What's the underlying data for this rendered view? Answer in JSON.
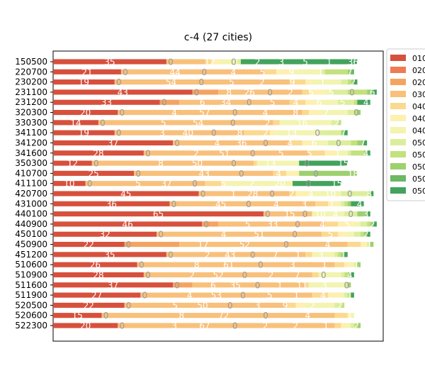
{
  "chart_data": {
    "type": "bar",
    "orientation": "horizontal",
    "stacked": true,
    "title": "c-4 (27 cities)",
    "xlabel": "",
    "ylabel": "",
    "xlim": [
      0,
      102
    ],
    "grid": false,
    "legend_position": "right",
    "categories": [
      "150500",
      "220700",
      "230200",
      "231100",
      "231200",
      "320300",
      "330300",
      "341100",
      "341200",
      "341600",
      "350300",
      "410700",
      "411100",
      "420700",
      "431000",
      "440100",
      "440900",
      "450100",
      "450900",
      "451200",
      "510600",
      "510900",
      "511600",
      "511900",
      "520500",
      "520600",
      "522300"
    ],
    "series": [
      {
        "name": "010",
        "color": "#d7503c",
        "values": [
          35,
          21,
          19,
          43,
          33,
          20,
          14,
          19,
          37,
          28,
          12,
          25,
          10,
          45,
          36,
          65,
          46,
          32,
          22,
          35,
          26,
          28,
          37,
          27,
          22,
          15,
          20
        ]
      },
      {
        "name": "020",
        "color": "#ef7b52",
        "values": [
          0,
          0,
          0,
          0,
          0,
          0,
          0,
          0,
          0,
          0,
          0,
          0,
          0,
          0,
          0,
          0,
          0,
          0,
          0,
          0,
          0,
          0,
          0,
          0,
          0,
          0,
          0
        ]
      },
      {
        "name": "020",
        "color": "#f5a361",
        "values": [
          0,
          0,
          0,
          8,
          6,
          0,
          0,
          0,
          0,
          0,
          0,
          0,
          0,
          0,
          0,
          0,
          5,
          0,
          17,
          0,
          0,
          0,
          6,
          0,
          0,
          0,
          0
        ]
      },
      {
        "name": "030",
        "color": "#f8c07a",
        "values": [
          12,
          44,
          54,
          26,
          34,
          57,
          54,
          40,
          36,
          51,
          50,
          43,
          37,
          28,
          45,
          15,
          33,
          51,
          52,
          43,
          61,
          52,
          35,
          53,
          50,
          72,
          67
        ]
      },
      {
        "name": "040",
        "color": "#fbd98f",
        "values": [
          2,
          4,
          5,
          2,
          5,
          2,
          2,
          8,
          4,
          5,
          1,
          4,
          5,
          2,
          4,
          0,
          4,
          5,
          4,
          2,
          3,
          2,
          1,
          5,
          3,
          4,
          2
        ]
      },
      {
        "name": "040",
        "color": "#fdf0b0",
        "values": [
          3,
          5,
          2,
          5,
          4,
          4,
          0,
          2,
          3,
          3,
          0,
          4,
          2,
          4,
          3,
          0,
          5,
          3,
          2,
          0,
          2,
          0,
          0,
          4,
          3,
          1,
          2
        ]
      },
      {
        "name": "040",
        "color": "#f2f4b0",
        "values": [
          5,
          9,
          9,
          2,
          6,
          8,
          16,
          13,
          5,
          4,
          13,
          0,
          20,
          10,
          1,
          10,
          2,
          2,
          0,
          7,
          1,
          7,
          11,
          1,
          9,
          1,
          1
        ]
      },
      {
        "name": "050",
        "color": "#dcee9c",
        "values": [
          1,
          1,
          2,
          5,
          5,
          2,
          2,
          7,
          7,
          1,
          0,
          0,
          0,
          8,
          1,
          4,
          2,
          2,
          1,
          1,
          1,
          1,
          1,
          1,
          2,
          0,
          1
        ]
      },
      {
        "name": "050",
        "color": "#c3e17c",
        "values": [
          0,
          7,
          1,
          6,
          1,
          1,
          1,
          0,
          2,
          4,
          0,
          0,
          0,
          1,
          1,
          0,
          1,
          1,
          0,
          1,
          0,
          1,
          0,
          1,
          1,
          0,
          1
        ]
      },
      {
        "name": "050",
        "color": "#9ed070",
        "values": [
          0,
          1,
          1,
          1,
          0,
          1,
          0,
          1,
          2,
          1,
          0,
          18,
          0,
          0,
          1,
          3,
          1,
          1,
          1,
          1,
          1,
          1,
          1,
          0,
          0,
          0,
          1
        ]
      },
      {
        "name": "050",
        "color": "#6cb865",
        "values": [
          0,
          1,
          0,
          1,
          0,
          0,
          0,
          0,
          0,
          0,
          0,
          0,
          0,
          0,
          0,
          0,
          0,
          0,
          0,
          0,
          0,
          0,
          0,
          0,
          0,
          0,
          0
        ]
      },
      {
        "name": "050",
        "color": "#43a35c",
        "values": [
          36,
          0,
          1,
          1,
          4,
          0,
          0,
          1,
          1,
          1,
          15,
          0,
          15,
          1,
          4,
          1,
          1,
          1,
          0,
          1,
          0,
          1,
          0,
          1,
          0,
          0,
          0
        ]
      }
    ],
    "data_labels": [
      [
        "35",
        "0",
        "12",
        "0",
        "2",
        "3",
        "5",
        "1",
        "36"
      ],
      [
        "21",
        "0",
        "44",
        "0",
        "4",
        "5",
        "9",
        "1",
        "7"
      ],
      [
        "19",
        "0",
        "54",
        "0",
        "5",
        "2",
        "9",
        "1",
        "2"
      ],
      [
        "43",
        "0",
        "8",
        "26",
        "0",
        "2",
        "5",
        "5",
        "0",
        "6"
      ],
      [
        "33",
        "0",
        "6",
        "34",
        "0",
        "5",
        "4",
        "6",
        "5",
        "4"
      ],
      [
        "20",
        "0",
        "4",
        "57",
        "0",
        "4",
        "8",
        "2",
        "0"
      ],
      [
        "14",
        "0",
        "5",
        "54",
        "0",
        "2",
        "16",
        "2"
      ],
      [
        "19",
        "0",
        "3",
        "40",
        "0",
        "8",
        "2",
        "13",
        "0",
        "7"
      ],
      [
        "37",
        "0",
        "4",
        "36",
        "0",
        "4",
        "6",
        "0",
        "7"
      ],
      [
        "28",
        "0",
        "2",
        "51",
        "0",
        "5",
        "5",
        "1",
        "4"
      ],
      [
        "12",
        "0",
        "8",
        "50",
        "0",
        "13",
        "0",
        "15"
      ],
      [
        "25",
        "0",
        "43",
        "0",
        "4",
        "0",
        "18"
      ],
      [
        "10",
        "0",
        "5",
        "37",
        "0",
        "5",
        "2",
        "20",
        "0",
        "15"
      ],
      [
        "45",
        "0",
        "1",
        "28",
        "0",
        "2",
        "4",
        "10",
        "0",
        "8"
      ],
      [
        "36",
        "0",
        "45",
        "0",
        "4",
        "3",
        "1",
        "4"
      ],
      [
        "65",
        "0",
        "15",
        "0",
        "10",
        "4",
        "0",
        "3"
      ],
      [
        "46",
        "0",
        "5",
        "33",
        "0",
        "4",
        "5",
        "2"
      ],
      [
        "32",
        "0",
        "4",
        "51",
        "0",
        "5",
        "2"
      ],
      [
        "22",
        "0",
        "17",
        "52",
        "0",
        "4",
        "1"
      ],
      [
        "35",
        "0",
        "2",
        "43",
        "0",
        "7",
        "1",
        "3",
        "1"
      ],
      [
        "26",
        "0",
        "8",
        "61",
        "0",
        "3",
        "1",
        "1"
      ],
      [
        "28",
        "0",
        "2",
        "52",
        "0",
        "2",
        "7",
        "0",
        "4"
      ],
      [
        "37",
        "0",
        "6",
        "35",
        "0",
        "1",
        "11",
        "3",
        "0"
      ],
      [
        "27",
        "0",
        "4",
        "53",
        "0",
        "5",
        "1",
        "4",
        "1"
      ],
      [
        "22",
        "0",
        "5",
        "50",
        "0",
        "3",
        "9",
        "2",
        "2"
      ],
      [
        "15",
        "0",
        "8",
        "72",
        "0",
        "4",
        "1"
      ],
      [
        "20",
        "0",
        "3",
        "67",
        "0",
        "2",
        "2",
        "1",
        "2"
      ]
    ]
  }
}
